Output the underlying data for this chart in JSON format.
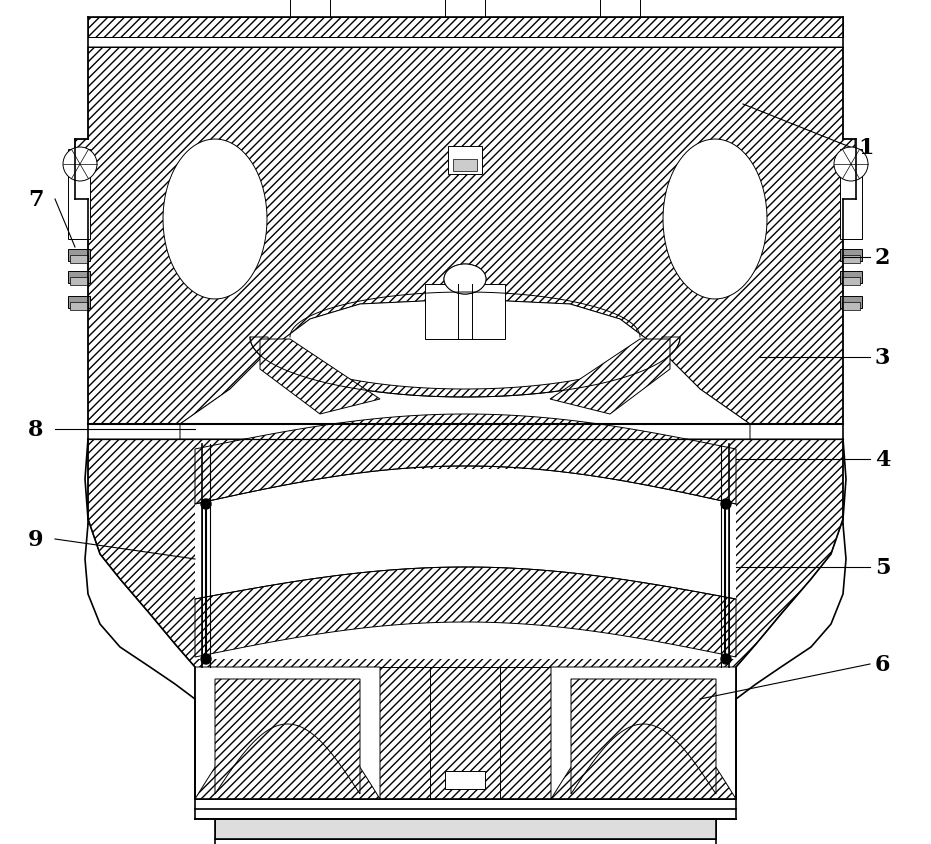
{
  "bg_color": "#ffffff",
  "line_color": "#000000",
  "hatch_color": "#000000",
  "lw_main": 1.2,
  "lw_thin": 0.7,
  "label_fontsize": 16,
  "labels": [
    "1",
    "2",
    "3",
    "4",
    "5",
    "6",
    "7",
    "8",
    "9"
  ]
}
